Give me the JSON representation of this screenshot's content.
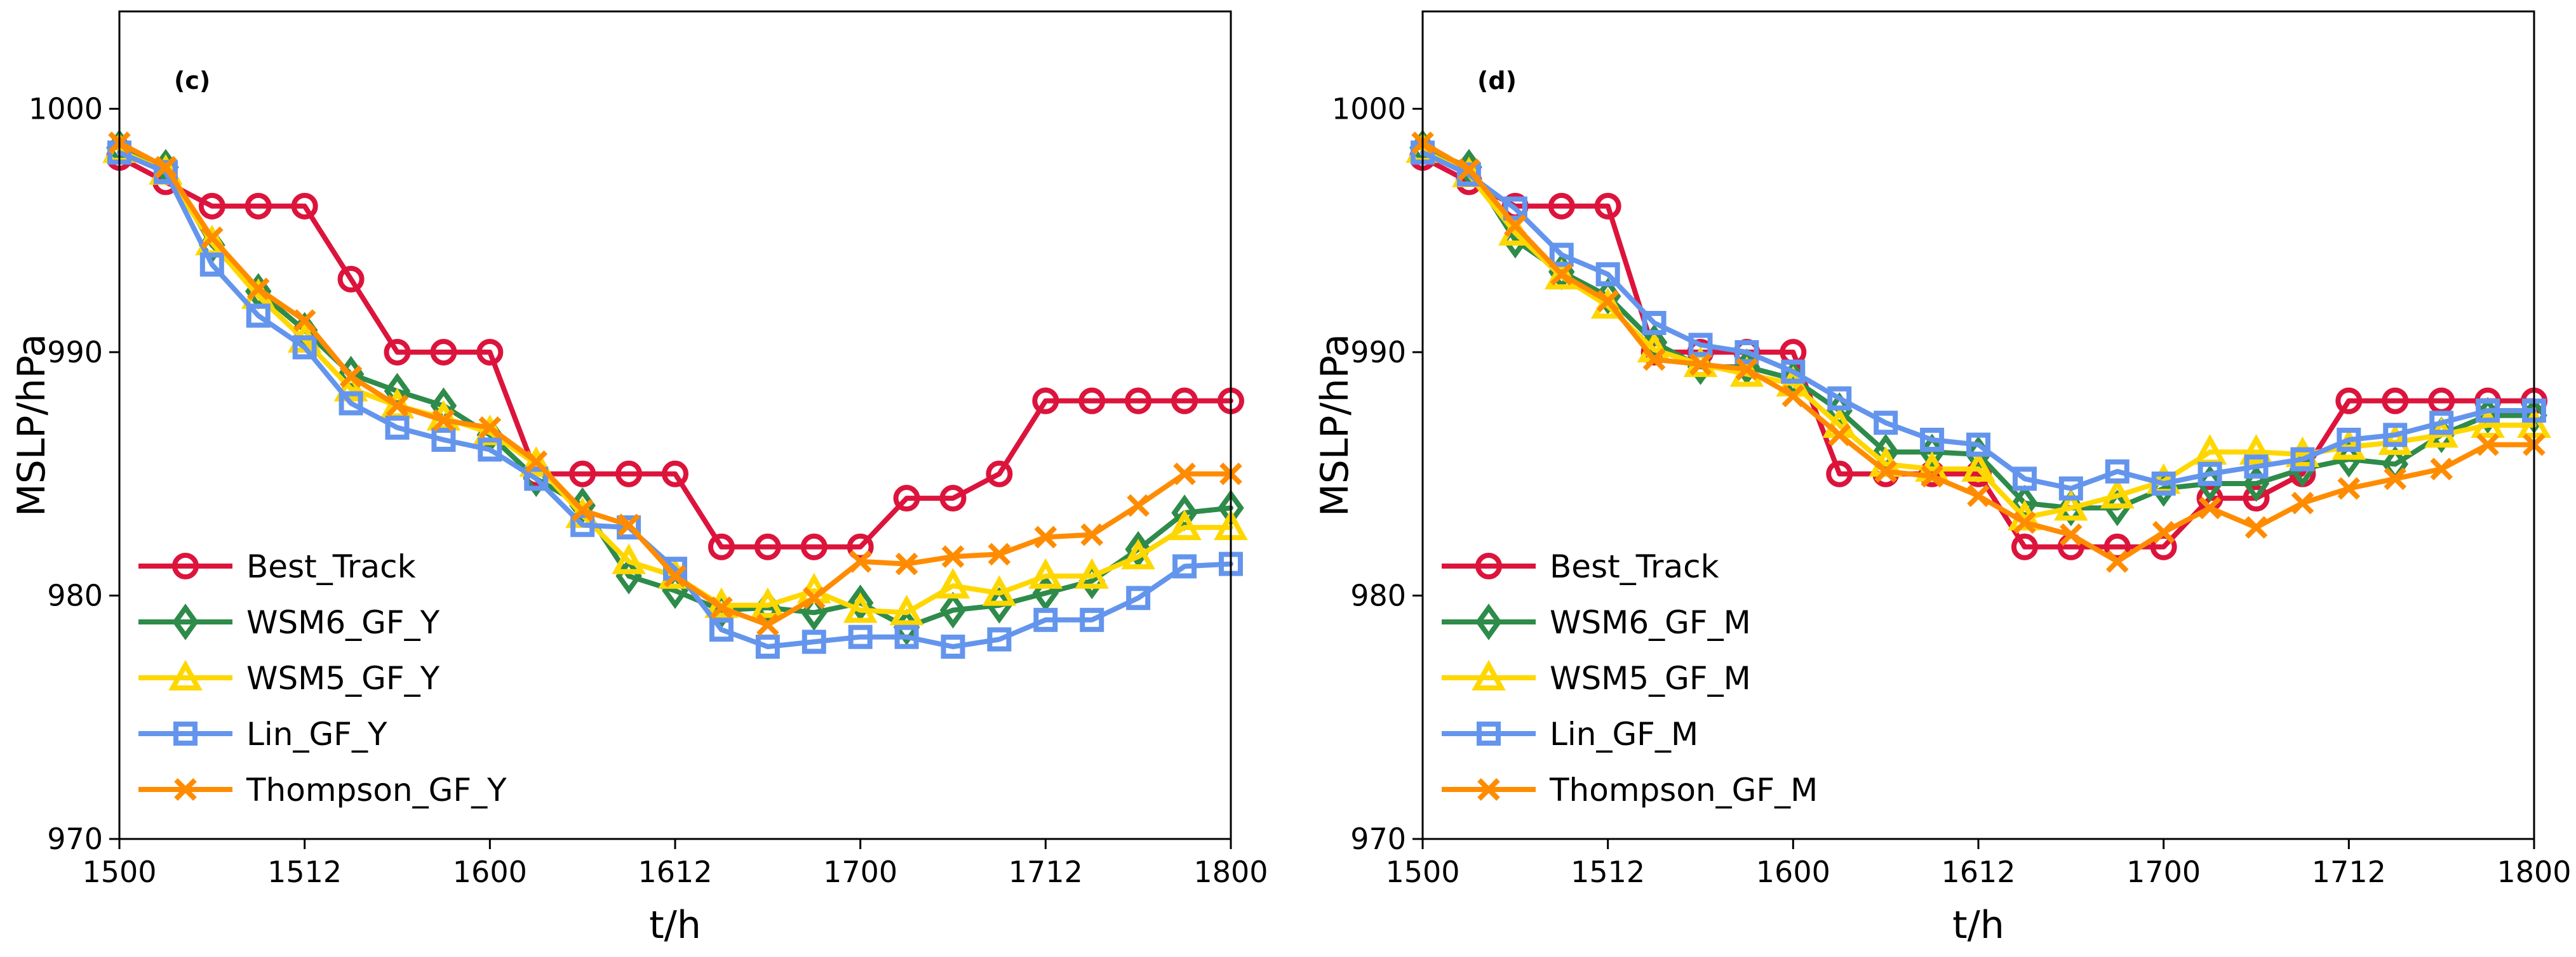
{
  "chart_data": [
    {
      "type": "line",
      "panel_label": "(c)",
      "xlabel": "t/h",
      "ylabel": "MSLP/hPa",
      "x": [
        0,
        3,
        6,
        9,
        12,
        15,
        18,
        21,
        24,
        27,
        30,
        33,
        36,
        39,
        42,
        45,
        48,
        51,
        54,
        57,
        60,
        63,
        66,
        69,
        72
      ],
      "xlim": [
        0,
        72
      ],
      "ylim": [
        970,
        1004
      ],
      "xticks": [
        0,
        12,
        24,
        36,
        48,
        60,
        72
      ],
      "xtick_labels": [
        "1500",
        "1512",
        "1600",
        "1612",
        "1700",
        "1712",
        "1800"
      ],
      "yticks": [
        970,
        980,
        990,
        1000
      ],
      "ytick_labels": [
        "970",
        "980",
        "990",
        "1000"
      ],
      "legend_position": "lower-left",
      "series": [
        {
          "name": "Best_Track",
          "color": "#dc143c",
          "marker": "circle",
          "values": [
            998,
            997,
            996,
            996,
            996,
            993,
            990,
            990,
            990,
            985,
            985,
            985,
            985,
            982,
            982,
            982,
            982,
            984,
            984,
            985,
            988,
            988,
            988,
            988,
            988
          ]
        },
        {
          "name": "WSM6_GF_Y",
          "color": "#2e8b4a",
          "marker": "diamond",
          "values": [
            998.4,
            997.6,
            994.4,
            992.5,
            990.9,
            989.1,
            988.4,
            987.8,
            986.6,
            984.8,
            983.7,
            980.8,
            980.2,
            979.4,
            979.5,
            979.3,
            979.7,
            978.7,
            979.4,
            979.6,
            980.1,
            980.6,
            981.9,
            983.4,
            983.6
          ]
        },
        {
          "name": "WSM5_GF_Y",
          "color": "#ffd700",
          "marker": "triangle",
          "values": [
            998.3,
            997.4,
            994.5,
            992.3,
            990.5,
            988.5,
            987.8,
            987.3,
            986.7,
            985.4,
            983.3,
            981.4,
            980.8,
            979.6,
            979.6,
            980.2,
            979.4,
            979.3,
            980.4,
            980.1,
            980.8,
            980.8,
            981.6,
            982.8,
            982.8
          ]
        },
        {
          "name": "Lin_GF_Y",
          "color": "#6495ed",
          "marker": "square",
          "values": [
            998.2,
            997.4,
            993.6,
            991.5,
            990.2,
            987.9,
            986.9,
            986.4,
            986.0,
            984.8,
            982.9,
            982.8,
            981.1,
            978.6,
            977.9,
            978.1,
            978.3,
            978.3,
            977.9,
            978.2,
            979.0,
            979.0,
            979.9,
            981.2,
            981.3
          ]
        },
        {
          "name": "Thompson_GF_Y",
          "color": "#ff8c00",
          "marker": "x",
          "values": [
            998.6,
            997.6,
            994.7,
            992.6,
            991.3,
            989.0,
            987.8,
            987.2,
            986.9,
            985.5,
            983.5,
            982.9,
            980.8,
            979.5,
            978.8,
            979.9,
            981.4,
            981.3,
            981.6,
            981.7,
            982.4,
            982.5,
            983.7,
            985.0,
            985.0
          ]
        }
      ]
    },
    {
      "type": "line",
      "panel_label": "(d)",
      "xlabel": "t/h",
      "ylabel": "MSLP/hPa",
      "x": [
        0,
        3,
        6,
        9,
        12,
        15,
        18,
        21,
        24,
        27,
        30,
        33,
        36,
        39,
        42,
        45,
        48,
        51,
        54,
        57,
        60,
        63,
        66,
        69,
        72
      ],
      "xlim": [
        0,
        72
      ],
      "ylim": [
        970,
        1004
      ],
      "xticks": [
        0,
        12,
        24,
        36,
        48,
        60,
        72
      ],
      "xtick_labels": [
        "1500",
        "1512",
        "1600",
        "1612",
        "1700",
        "1712",
        "1800"
      ],
      "yticks": [
        970,
        980,
        990,
        1000
      ],
      "ytick_labels": [
        "970",
        "980",
        "990",
        "1000"
      ],
      "legend_position": "lower-left",
      "series": [
        {
          "name": "Best_Track",
          "color": "#dc143c",
          "marker": "circle",
          "values": [
            998,
            997,
            996,
            996,
            996,
            990,
            990,
            990,
            990,
            985,
            985,
            985,
            985,
            982,
            982,
            982,
            982,
            984,
            984,
            985,
            988,
            988,
            988,
            988,
            988
          ]
        },
        {
          "name": "WSM6_GF_M",
          "color": "#2e8b4a",
          "marker": "diamond",
          "values": [
            998.4,
            997.6,
            994.6,
            993.3,
            992.3,
            990.4,
            989.4,
            989.4,
            988.9,
            987.6,
            985.9,
            985.9,
            985.8,
            983.8,
            983.6,
            983.6,
            984.4,
            984.6,
            984.6,
            985.2,
            985.6,
            985.4,
            986.6,
            987.4,
            987.4
          ]
        },
        {
          "name": "WSM5_GF_M",
          "color": "#ffd700",
          "marker": "triangle",
          "values": [
            998.3,
            997.3,
            994.9,
            993.1,
            991.9,
            990.1,
            989.5,
            989.1,
            988.7,
            987.0,
            985.4,
            985.2,
            985.2,
            983.2,
            983.6,
            984.1,
            984.7,
            985.9,
            985.9,
            985.8,
            986.1,
            986.3,
            986.6,
            987.0,
            987.0
          ]
        },
        {
          "name": "Lin_GF_M",
          "color": "#6495ed",
          "marker": "square",
          "values": [
            998.2,
            997.3,
            995.9,
            994.0,
            993.2,
            991.2,
            990.3,
            990.0,
            989.2,
            988.1,
            987.1,
            986.4,
            986.2,
            984.8,
            984.4,
            985.1,
            984.6,
            985.0,
            985.3,
            985.6,
            986.4,
            986.6,
            987.1,
            987.6,
            987.6
          ]
        },
        {
          "name": "Thompson_GF_M",
          "color": "#ff8c00",
          "marker": "x",
          "values": [
            998.6,
            997.5,
            995.2,
            993.2,
            992.1,
            989.7,
            989.5,
            989.3,
            988.2,
            986.6,
            985.1,
            984.9,
            984.1,
            983.0,
            982.5,
            981.4,
            982.6,
            983.6,
            982.8,
            983.8,
            984.4,
            984.8,
            985.2,
            986.2,
            986.2
          ]
        }
      ]
    }
  ]
}
